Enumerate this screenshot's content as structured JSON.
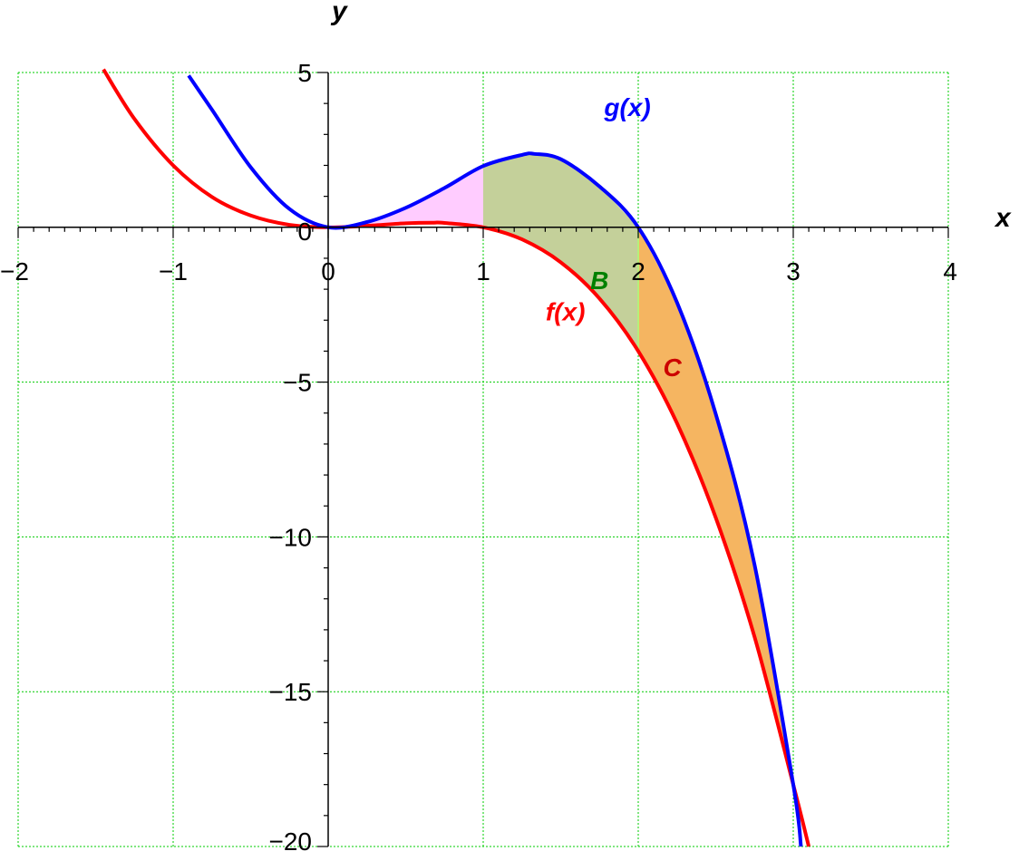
{
  "chart_data": {
    "type": "line",
    "title": "",
    "xlabel": "x",
    "ylabel": "y",
    "xlim": [
      -2,
      4
    ],
    "ylim": [
      -20,
      5
    ],
    "grid": true,
    "x_ticks": [
      -2,
      -1,
      0,
      1,
      2,
      3,
      4
    ],
    "x_tick_labels": [
      "−2",
      "−1",
      "0",
      "1",
      "2",
      "3",
      "4"
    ],
    "y_ticks": [
      -20,
      -15,
      -10,
      -5,
      0,
      5
    ],
    "y_tick_labels": [
      "−20",
      "−15",
      "−10",
      "−5",
      "0",
      "5"
    ],
    "series": [
      {
        "name": "f(x)",
        "color": "#ff0000",
        "x": [
          -1.45,
          -1.25,
          -1.0,
          -0.75,
          -0.5,
          -0.25,
          0.0,
          0.25,
          0.5,
          0.67,
          0.75,
          1.0,
          1.25,
          1.5,
          1.75,
          2.0,
          2.25,
          2.5,
          2.75,
          3.0,
          3.1
        ],
        "y": [
          5.1,
          3.5,
          2.0,
          0.98,
          0.38,
          0.08,
          0.0,
          0.05,
          0.13,
          0.15,
          0.14,
          0.0,
          -0.39,
          -1.13,
          -2.3,
          -4.0,
          -6.33,
          -9.38,
          -13.23,
          -18.0,
          -20.0
        ]
      },
      {
        "name": "g(x)",
        "color": "#0000ff",
        "x": [
          -0.9,
          -0.75,
          -0.5,
          -0.25,
          0.0,
          0.25,
          0.5,
          0.75,
          1.0,
          1.25,
          1.33,
          1.5,
          1.75,
          2.0,
          2.25,
          2.5,
          2.75,
          3.0,
          3.05
        ],
        "y": [
          4.9,
          3.8,
          1.94,
          0.59,
          0.0,
          0.17,
          0.63,
          1.27,
          1.98,
          2.34,
          2.37,
          2.2,
          1.32,
          0.0,
          -2.43,
          -6.03,
          -10.9,
          -18.0,
          -20.0
        ]
      }
    ],
    "regions": [
      {
        "label": "",
        "color": "#ffccff",
        "between": [
          "f(x)",
          "g(x)"
        ],
        "x_range": [
          0,
          1
        ]
      },
      {
        "label": "B",
        "color": "#c4d09a",
        "between": [
          "f(x)",
          "g(x)"
        ],
        "x_range": [
          1,
          2
        ]
      },
      {
        "label": "C",
        "color": "#f5b561",
        "between": [
          "f(x)",
          "g(x)"
        ],
        "x_range": [
          2,
          3
        ]
      }
    ],
    "annotations": [
      {
        "text": "g(x)",
        "x": 1.93,
        "y": 3.6,
        "color": "#0000ff"
      },
      {
        "text": "f(x)",
        "x": 1.53,
        "y": -3.0,
        "color": "#ff0000"
      },
      {
        "text": "B",
        "x": 1.75,
        "y": -2.0,
        "color": "#008000"
      },
      {
        "text": "C",
        "x": 2.22,
        "y": -4.8,
        "color": "#cc0000"
      }
    ],
    "colors": {
      "grid": "#00cc00",
      "axes": "#000000"
    }
  }
}
